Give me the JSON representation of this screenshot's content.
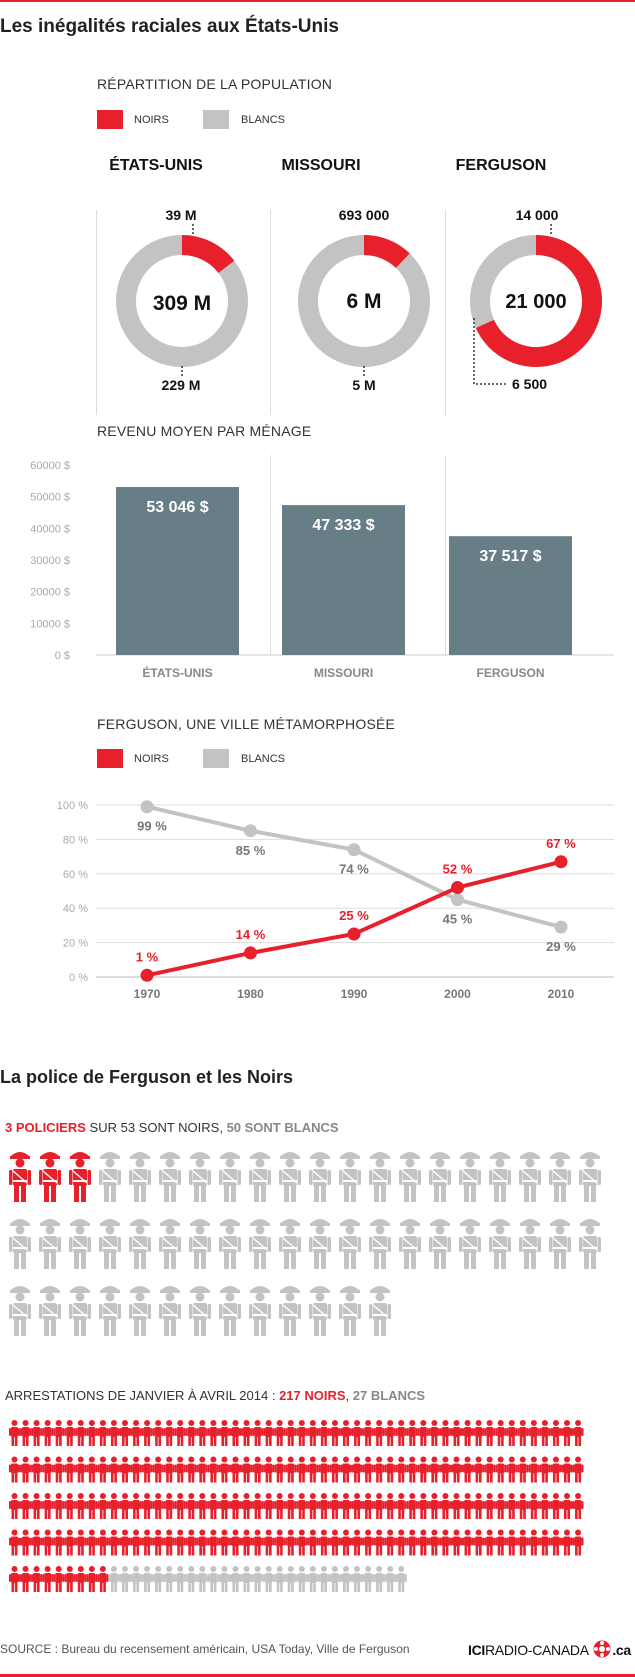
{
  "title": "Les inégalités raciales aux États-Unis",
  "legend": {
    "noirs": "NOIRS",
    "blancs": "BLANCS"
  },
  "colors": {
    "accent": "#e8202c",
    "grey": "#c3c3c3",
    "bar": "#677e87",
    "grid": "#dddddd"
  },
  "population": {
    "heading": "RÉPARTITION DE LA POPULATION",
    "columns": [
      {
        "name": "ÉTATS-UNIS",
        "total": "309 M",
        "black_label": "39 M",
        "white_label": "229 M"
      },
      {
        "name": "MISSOURI",
        "total": "6 M",
        "black_label": "693 000",
        "white_label": "5 M"
      },
      {
        "name": "FERGUSON",
        "total": "21 000",
        "black_label": "14 000",
        "white_label": "6 500"
      }
    ]
  },
  "revenue_heading": "REVENU MOYEN PAR MÉNAGE",
  "evolution_heading": "FERGUSON, UNE VILLE MÉTAMORPHOSÉE",
  "chart_data": [
    {
      "type": "pie",
      "title": "ÉTATS-UNIS",
      "center_label": "309 M",
      "labels": [
        "NOIRS",
        "BLANCS"
      ],
      "values": [
        39,
        229
      ]
    },
    {
      "type": "pie",
      "title": "MISSOURI",
      "center_label": "6 M",
      "labels": [
        "NOIRS",
        "BLANCS"
      ],
      "values": [
        693000,
        5000000
      ]
    },
    {
      "type": "pie",
      "title": "FERGUSON",
      "center_label": "21 000",
      "labels": [
        "NOIRS",
        "BLANCS"
      ],
      "values": [
        14000,
        6500
      ]
    },
    {
      "type": "bar",
      "title": "REVENU MOYEN PAR MÉNAGE",
      "categories": [
        "ÉTATS-UNIS",
        "MISSOURI",
        "FERGUSON"
      ],
      "values": [
        53046,
        47333,
        37517
      ],
      "value_labels": [
        "53 046 $",
        "47 333 $",
        "37 517 $"
      ],
      "ylim": [
        0,
        60000
      ],
      "yticks": [
        "0 $",
        "10000 $",
        "20000 $",
        "30000 $",
        "40000 $",
        "50000 $",
        "60000 $"
      ]
    },
    {
      "type": "line",
      "title": "FERGUSON, UNE VILLE MÉTAMORPHOSÉE",
      "x": [
        "1970",
        "1980",
        "1990",
        "2000",
        "2010"
      ],
      "series": [
        {
          "name": "NOIRS",
          "values": [
            1,
            14,
            25,
            52,
            67
          ],
          "labels": [
            "1 %",
            "14 %",
            "25 %",
            "52 %",
            "67 %"
          ]
        },
        {
          "name": "BLANCS",
          "values": [
            99,
            85,
            74,
            45,
            29
          ],
          "labels": [
            "99 %",
            "85 %",
            "74 %",
            "45 %",
            "29 %"
          ]
        }
      ],
      "ylim": [
        0,
        100
      ],
      "yticks": [
        "0 %",
        "20 %",
        "40 %",
        "60 %",
        "80 %",
        "100 %"
      ],
      "grid": true
    }
  ],
  "police": {
    "title": "La police de Ferguson et les Noirs",
    "head_red": "3 POLICIERS",
    "head_mid": " SUR 53 SONT NOIRS, ",
    "head_grey": "50 SONT BLANCS",
    "black": 3,
    "white": 50
  },
  "arrests": {
    "head_text": "ARRESTATIONS DE JANVIER À AVRIL 2014 : ",
    "head_red": "217 NOIRS",
    "head_mid": ", ",
    "head_grey": "27 BLANCS",
    "black": 217,
    "white": 27
  },
  "source": "SOURCE : Bureau du recensement américain, USA Today, Ville de Ferguson",
  "logo": {
    "ici": "ICI",
    "radio": "RADIO-CANADA",
    "ca": ".ca"
  }
}
